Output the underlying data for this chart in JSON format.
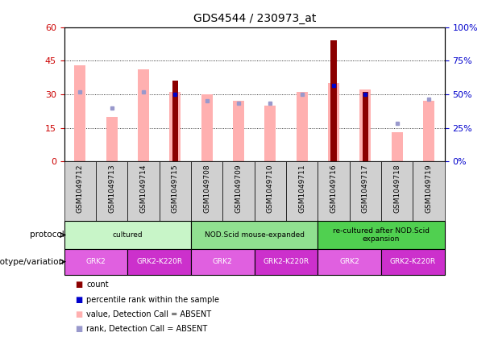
{
  "title": "GDS4544 / 230973_at",
  "samples": [
    "GSM1049712",
    "GSM1049713",
    "GSM1049714",
    "GSM1049715",
    "GSM1049708",
    "GSM1049709",
    "GSM1049710",
    "GSM1049711",
    "GSM1049716",
    "GSM1049717",
    "GSM1049718",
    "GSM1049719"
  ],
  "pink_bars": [
    43,
    20,
    41,
    31,
    30,
    27,
    25,
    31,
    35,
    32,
    13,
    27
  ],
  "dark_red_bars": [
    0,
    0,
    0,
    36,
    0,
    0,
    0,
    0,
    54,
    31,
    0,
    0
  ],
  "blue_squares_y": [
    31,
    24,
    31,
    30,
    27,
    26,
    26,
    30,
    34,
    30,
    17,
    28
  ],
  "blue_squares_present": [
    false,
    false,
    false,
    true,
    false,
    false,
    false,
    false,
    true,
    true,
    false,
    false
  ],
  "ylim_left": [
    0,
    60
  ],
  "ylim_right": [
    0,
    100
  ],
  "yticks_left": [
    0,
    15,
    30,
    45,
    60
  ],
  "yticks_right": [
    0,
    25,
    50,
    75,
    100
  ],
  "ytick_labels_left": [
    "0",
    "15",
    "30",
    "45",
    "60"
  ],
  "ytick_labels_right": [
    "0%",
    "25%",
    "50%",
    "75%",
    "100%"
  ],
  "protocol_groups": [
    {
      "label": "cultured",
      "start": 0,
      "end": 3,
      "color": "#c8f5c8"
    },
    {
      "label": "NOD.Scid mouse-expanded",
      "start": 4,
      "end": 7,
      "color": "#90e090"
    },
    {
      "label": "re-cultured after NOD.Scid\nexpansion",
      "start": 8,
      "end": 11,
      "color": "#50d050"
    }
  ],
  "genotype_groups": [
    {
      "label": "GRK2",
      "start": 0,
      "end": 1,
      "color": "#e060e0"
    },
    {
      "label": "GRK2-K220R",
      "start": 2,
      "end": 3,
      "color": "#cc30cc"
    },
    {
      "label": "GRK2",
      "start": 4,
      "end": 5,
      "color": "#e060e0"
    },
    {
      "label": "GRK2-K220R",
      "start": 6,
      "end": 7,
      "color": "#cc30cc"
    },
    {
      "label": "GRK2",
      "start": 8,
      "end": 9,
      "color": "#e060e0"
    },
    {
      "label": "GRK2-K220R",
      "start": 10,
      "end": 11,
      "color": "#cc30cc"
    }
  ],
  "pink_color": "#ffb0b0",
  "dark_red_color": "#8b0000",
  "blue_square_color": "#9999cc",
  "blue_square_present_color": "#0000cc",
  "left_label_color": "#cc0000",
  "right_label_color": "#0000cc",
  "grid_color": "#000000",
  "xtick_bg_color": "#d0d0d0",
  "legend_items": [
    {
      "color": "#8b0000",
      "label": "count"
    },
    {
      "color": "#0000cc",
      "label": "percentile rank within the sample"
    },
    {
      "color": "#ffb0b0",
      "label": "value, Detection Call = ABSENT"
    },
    {
      "color": "#9999cc",
      "label": "rank, Detection Call = ABSENT"
    }
  ]
}
